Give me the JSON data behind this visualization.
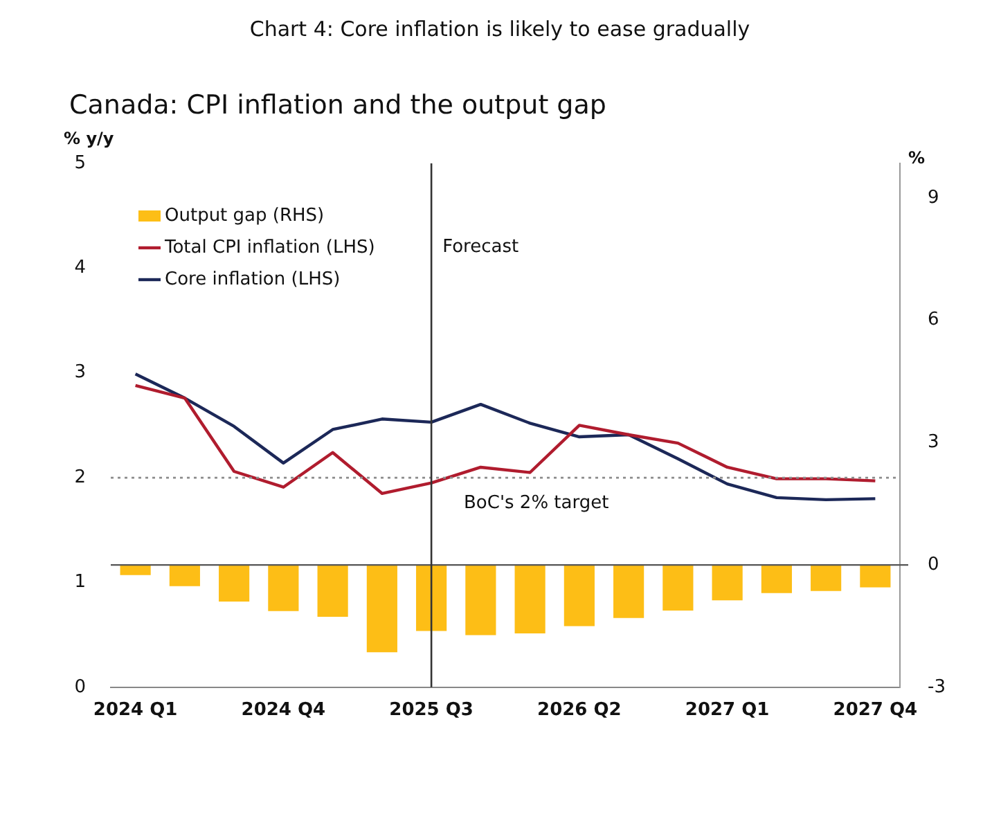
{
  "chart_data": {
    "type": "line",
    "title": "Chart 4: Core inflation is likely to ease gradually",
    "subtitle": "Canada: CPI inflation and the output gap",
    "ylabel": "% y/y",
    "y2label": "%",
    "categories": [
      "2024 Q1",
      null,
      null,
      "2024 Q4",
      null,
      null,
      "2025 Q3",
      null,
      null,
      "2026 Q2",
      null,
      null,
      "2027 Q1",
      null,
      null,
      "2027 Q4"
    ],
    "series": [
      {
        "name": "Output gap (RHS)",
        "type": "bar",
        "axis": "y2",
        "color": "#fdbe16",
        "values": [
          -0.25,
          -0.52,
          -0.9,
          -1.13,
          -1.27,
          -2.14,
          -1.62,
          -1.72,
          -1.68,
          -1.5,
          -1.3,
          -1.12,
          -0.87,
          -0.69,
          -0.64,
          -0.55
        ]
      },
      {
        "name": "Total CPI inflation (LHS)",
        "color": "#b01c2e",
        "values": [
          2.88,
          2.76,
          2.06,
          1.91,
          2.24,
          1.85,
          1.95,
          2.1,
          2.05,
          2.5,
          2.41,
          2.33,
          2.1,
          1.99,
          1.99,
          1.97
        ]
      },
      {
        "name": "Core inflation (LHS)",
        "color": "#1c2858",
        "values": [
          2.99,
          2.76,
          2.49,
          2.14,
          2.46,
          2.56,
          2.53,
          2.7,
          2.52,
          2.39,
          2.41,
          2.18,
          1.94,
          1.81,
          1.79,
          1.8
        ]
      }
    ],
    "ylim": [
      0,
      5
    ],
    "yticks": [
      0,
      1,
      2,
      3,
      4,
      5
    ],
    "y2lim": [
      -3,
      9.85
    ],
    "y2ticks": [
      -3,
      0,
      3,
      6,
      9
    ],
    "ref_lines": [
      {
        "axis": "y",
        "value": 2,
        "label": "BoC's 2% target",
        "color": "#8c8c8c",
        "line_style": "dotted"
      },
      {
        "axis": "x",
        "value": "2025 Q3",
        "label": "Forecast",
        "color": "#333333",
        "line_style": "solid"
      }
    ],
    "legend": "top left",
    "grid": false,
    "marker": "none",
    "line_style": "solid"
  }
}
